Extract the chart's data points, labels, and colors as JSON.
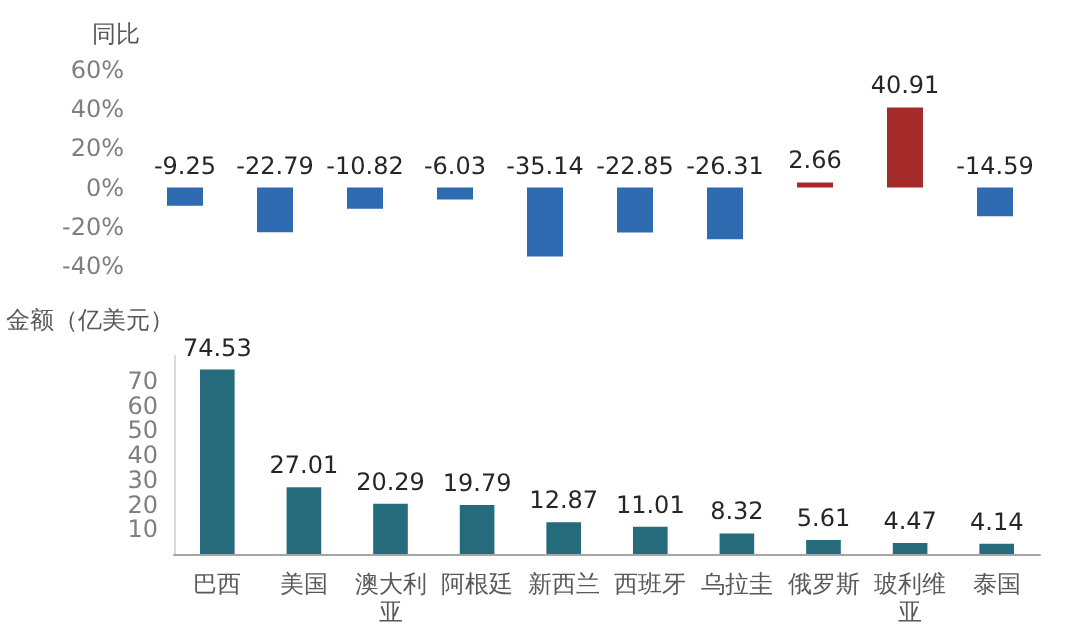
{
  "chart_data": [
    {
      "type": "bar",
      "ylabel": "同比",
      "categories": [
        "巴西",
        "美国",
        "澳大利亚",
        "阿根廷",
        "新西兰",
        "西班牙",
        "乌拉圭",
        "俄罗斯",
        "玻利维亚",
        "泰国"
      ],
      "values": [
        -9.25,
        -22.79,
        -10.82,
        -6.03,
        -35.14,
        -22.85,
        -26.31,
        2.66,
        40.91,
        -14.59
      ],
      "colors": [
        "#2e6bb0",
        "#2e6bb0",
        "#2e6bb0",
        "#2e6bb0",
        "#2e6bb0",
        "#2e6bb0",
        "#2e6bb0",
        "#a52a2a",
        "#a52a2a",
        "#2e6bb0"
      ],
      "ylim": [
        -40,
        60
      ],
      "yticks": [
        {
          "value": -40,
          "label": "-40%"
        },
        {
          "value": -20,
          "label": "-20%"
        },
        {
          "value": 0,
          "label": "0%"
        },
        {
          "value": 20,
          "label": "20%"
        },
        {
          "value": 40,
          "label": "40%"
        },
        {
          "value": 60,
          "label": "60%"
        }
      ],
      "data_labels": true,
      "grid": false,
      "tick_labels": "y"
    },
    {
      "type": "bar",
      "ylabel": "金额（亿美元）",
      "categories": [
        "巴西",
        "美国",
        "澳大利亚",
        "阿根廷",
        "新西兰",
        "西班牙",
        "乌拉圭",
        "俄罗斯",
        "玻利维亚",
        "泰国"
      ],
      "values": [
        74.53,
        27.01,
        20.29,
        19.79,
        12.87,
        11.01,
        8.32,
        5.61,
        4.47,
        4.14
      ],
      "color": "#256b7b",
      "ylim": [
        0,
        80
      ],
      "yticks": [
        10,
        20,
        30,
        40,
        50,
        60,
        70
      ],
      "data_labels": true,
      "grid": false
    }
  ]
}
